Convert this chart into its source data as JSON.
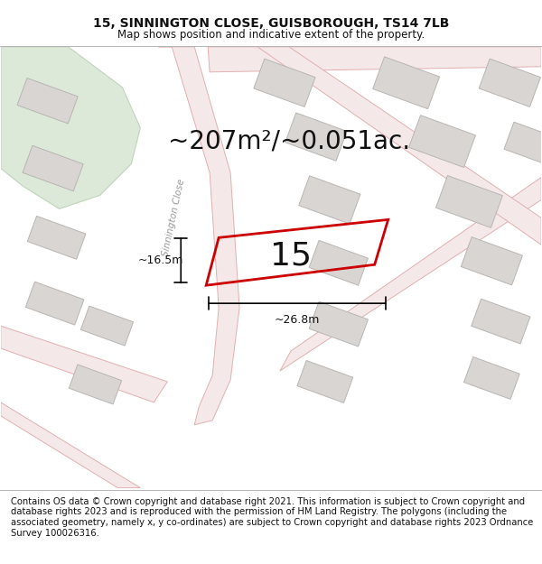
{
  "title": "15, SINNINGTON CLOSE, GUISBOROUGH, TS14 7LB",
  "subtitle": "Map shows position and indicative extent of the property.",
  "area_text": "~207m²/~0.051ac.",
  "number_label": "15",
  "dim_width": "~26.8m",
  "dim_height": "~16.5m",
  "street_label": "Sinnington Close",
  "footer_text": "Contains OS data © Crown copyright and database right 2021. This information is subject to Crown copyright and database rights 2023 and is reproduced with the permission of HM Land Registry. The polygons (including the associated geometry, namely x, y co-ordinates) are subject to Crown copyright and database rights 2023 Ordnance Survey 100026316.",
  "map_bg": "#f7f2f0",
  "road_fill": "#f5e8e8",
  "road_edge": "#e0b0b0",
  "building_fill": "#d8d5d2",
  "building_edge": "#b8b5b2",
  "green_fill": "#dce8d8",
  "green_edge": "#c0d4bc",
  "highlight_color": "#cc0000",
  "title_fontsize": 10,
  "subtitle_fontsize": 8.5,
  "area_fontsize": 20,
  "number_fontsize": 26,
  "street_fontsize": 7.5,
  "dim_fontsize": 9,
  "footer_fontsize": 7.2
}
